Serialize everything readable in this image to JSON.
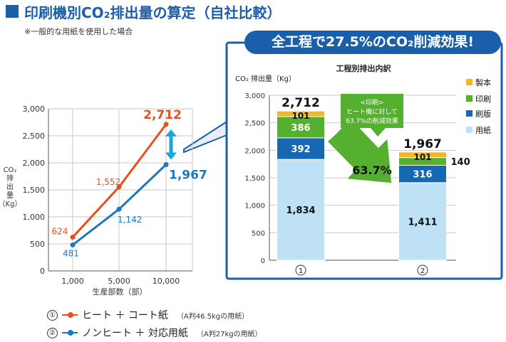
{
  "header": {
    "title": "印刷機別CO₂排出量の算定（自社比較）",
    "note": "※一般的な用紙を使用した場合"
  },
  "colors": {
    "brand_blue": "#1b5faa",
    "series_orange": "#e6501e",
    "series_blue": "#1a78c2",
    "seihon": "#f5b528",
    "insatsu": "#55b030",
    "seihan": "#1768b2",
    "youshi": "#bfe1f5",
    "arrow_green": "#55b030"
  },
  "chart_data": [
    {
      "type": "line",
      "title": "",
      "xlabel": "生産部数（部）",
      "ylabel": "CO₂排出量（Kg）",
      "categories": [
        "1,000",
        "5,000",
        "10,000"
      ],
      "ylim": [
        0,
        3000
      ],
      "yticks": [
        0,
        500,
        1000,
        1500,
        2000,
        2500,
        3000
      ],
      "ytick_labels": [
        "0",
        "500",
        "1,000",
        "1,500",
        "2,000",
        "2,500",
        "3,000"
      ],
      "grid": true,
      "series": [
        {
          "name": "ヒート ＋ コート紙",
          "values": [
            624,
            1552,
            2712
          ],
          "labels": [
            "624",
            "1,552",
            "2,712"
          ]
        },
        {
          "name": "ノンヒート ＋ 対応用紙",
          "values": [
            481,
            1142,
            1967
          ],
          "labels": [
            "481",
            "1,142",
            "1,967"
          ]
        }
      ]
    },
    {
      "type": "bar",
      "stacked": true,
      "title": "工程別排出内訳",
      "ylabel": "CO₂ 排出量（Kg）",
      "categories": [
        "①",
        "②"
      ],
      "ylim": [
        0,
        3000
      ],
      "yticks": [
        0,
        500,
        1000,
        1500,
        2000,
        2500,
        3000
      ],
      "ytick_labels": [
        "0",
        "500",
        "1,000",
        "1,500",
        "2,000",
        "2,500",
        "3,000"
      ],
      "grid": true,
      "series": [
        {
          "name": "用紙",
          "values": [
            1834,
            1411
          ],
          "labels": [
            "1,834",
            "1,411"
          ]
        },
        {
          "name": "刷版",
          "values": [
            392,
            316
          ],
          "labels": [
            "392",
            "316"
          ]
        },
        {
          "name": "印刷",
          "values": [
            386,
            140
          ],
          "labels": [
            "386",
            "140"
          ]
        },
        {
          "name": "製本",
          "values": [
            101,
            101
          ],
          "labels": [
            "101",
            "101"
          ]
        }
      ],
      "totals": [
        "2,712",
        "1,967"
      ],
      "legend": [
        "製本",
        "印刷",
        "刷版",
        "用紙"
      ],
      "legend_position": "right"
    }
  ],
  "annotations": {
    "callout_title": "全工程で27.5%のCO₂削減効果!",
    "print_note_lines": [
      "<印刷>",
      "ヒート機に対して",
      "63.7%の削減効果"
    ],
    "reduction_rate": "63.7%"
  },
  "legend": {
    "items": [
      {
        "num": "①",
        "label": "ヒート ＋ コート紙",
        "note": "（A判46.5kgの用紙）"
      },
      {
        "num": "②",
        "label": "ノンヒート ＋ 対応用紙",
        "note": "（A判27kgの用紙）"
      }
    ]
  }
}
